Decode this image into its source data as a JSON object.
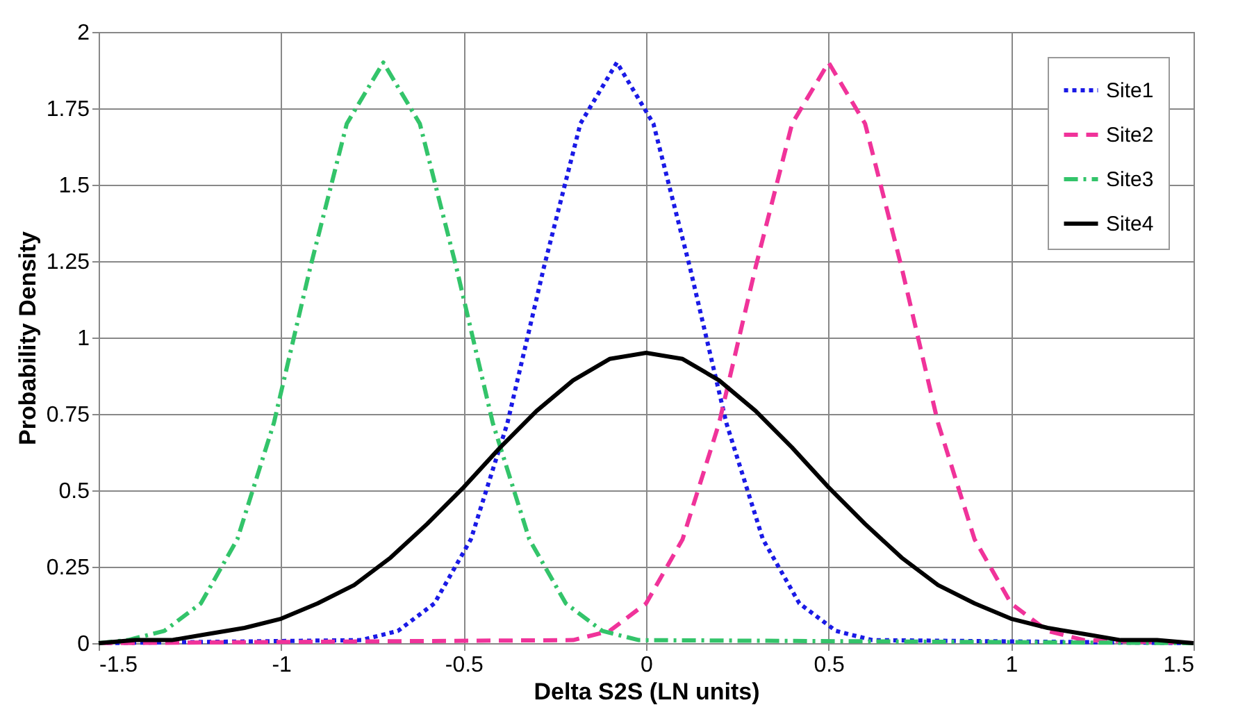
{
  "chart_data": {
    "type": "line",
    "xlabel": "Delta S2S (LN units)",
    "ylabel": "Probability Density",
    "xlim": [
      -1.5,
      1.5
    ],
    "xticks": [
      -1.5,
      -1,
      -0.5,
      0,
      0.5,
      1,
      1.5
    ],
    "ylim": [
      0,
      2
    ],
    "yticks": [
      0,
      0.25,
      0.5,
      0.75,
      1,
      1.25,
      1.5,
      1.75,
      2
    ],
    "grid": true,
    "legend": "top right",
    "marker": "none",
    "series": [
      {
        "name": "Site1",
        "color": "#1a1ae6",
        "line_style": "dotted",
        "x": [
          -1.5,
          -0.78,
          -0.68,
          -0.58,
          -0.48,
          -0.38,
          -0.28,
          -0.18,
          -0.08,
          0.02,
          0.12,
          0.22,
          0.32,
          0.42,
          0.52,
          0.62,
          1.5
        ],
        "values": [
          0,
          0.01,
          0.04,
          0.13,
          0.34,
          0.72,
          1.23,
          1.7,
          1.9,
          1.7,
          1.23,
          0.72,
          0.34,
          0.13,
          0.04,
          0.01,
          0
        ]
      },
      {
        "name": "Site2",
        "color": "#f0339a",
        "line_style": "dashed",
        "x": [
          -1.5,
          -0.2,
          -0.1,
          0,
          0.1,
          0.2,
          0.3,
          0.4,
          0.5,
          0.6,
          0.7,
          0.8,
          0.9,
          1.0,
          1.1,
          1.2,
          1.5
        ],
        "values": [
          0,
          0.01,
          0.04,
          0.13,
          0.34,
          0.72,
          1.23,
          1.7,
          1.9,
          1.7,
          1.23,
          0.72,
          0.34,
          0.13,
          0.04,
          0.01,
          0
        ]
      },
      {
        "name": "Site3",
        "color": "#33c46a",
        "line_style": "dashdot",
        "x": [
          -1.5,
          -1.42,
          -1.32,
          -1.22,
          -1.12,
          -1.02,
          -0.92,
          -0.82,
          -0.72,
          -0.62,
          -0.52,
          -0.42,
          -0.32,
          -0.22,
          -0.12,
          -0.02,
          1.5
        ],
        "values": [
          0,
          0.01,
          0.04,
          0.13,
          0.34,
          0.72,
          1.23,
          1.7,
          1.9,
          1.7,
          1.23,
          0.72,
          0.34,
          0.13,
          0.04,
          0.01,
          0
        ]
      },
      {
        "name": "Site4",
        "color": "#000000",
        "line_style": "solid",
        "x": [
          -1.5,
          -1.4,
          -1.3,
          -1.2,
          -1.1,
          -1.0,
          -0.9,
          -0.8,
          -0.7,
          -0.6,
          -0.5,
          -0.4,
          -0.3,
          -0.2,
          -0.1,
          0,
          0.1,
          0.2,
          0.3,
          0.4,
          0.5,
          0.6,
          0.7,
          0.8,
          0.9,
          1.0,
          1.1,
          1.2,
          1.3,
          1.4,
          1.5
        ],
        "values": [
          0,
          0.01,
          0.01,
          0.03,
          0.05,
          0.08,
          0.13,
          0.19,
          0.28,
          0.39,
          0.51,
          0.64,
          0.76,
          0.86,
          0.93,
          0.95,
          0.93,
          0.86,
          0.76,
          0.64,
          0.51,
          0.39,
          0.28,
          0.19,
          0.13,
          0.08,
          0.05,
          0.03,
          0.01,
          0.01,
          0
        ]
      }
    ]
  }
}
